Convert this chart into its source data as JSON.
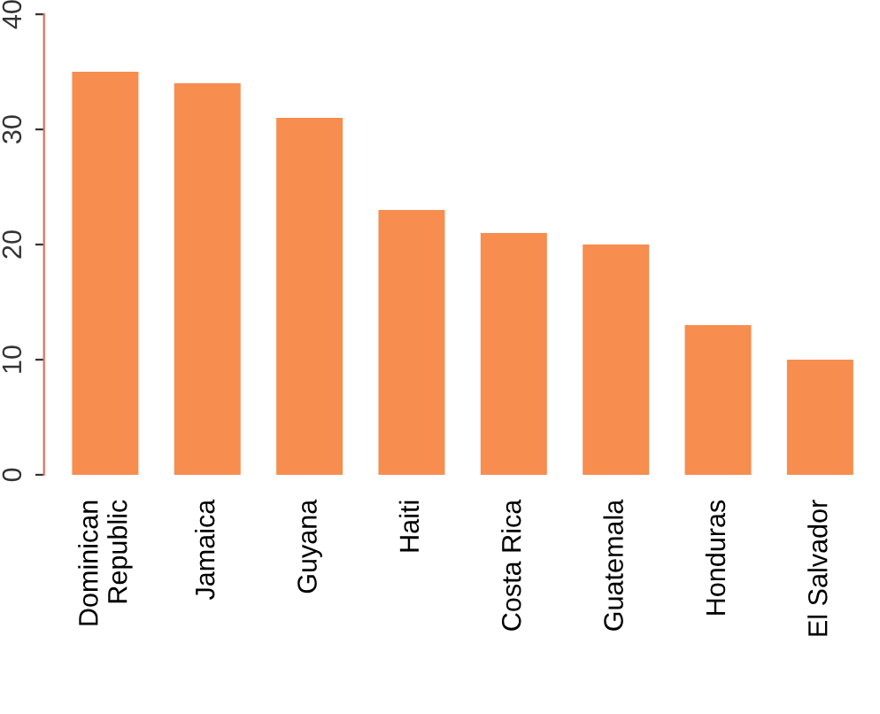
{
  "chart_data": {
    "type": "bar",
    "categories": [
      "Dominican\nRepublic",
      "Jamaica",
      "Guyana",
      "Haiti",
      "Costa Rica",
      "Guatemala",
      "Honduras",
      "El Salvador"
    ],
    "values": [
      35,
      34,
      31,
      23,
      21,
      20,
      13,
      10
    ],
    "color": "#f78d4f",
    "ylim": [
      0,
      40
    ],
    "yticks": [
      0,
      10,
      20,
      30,
      40
    ],
    "grid": false
  }
}
